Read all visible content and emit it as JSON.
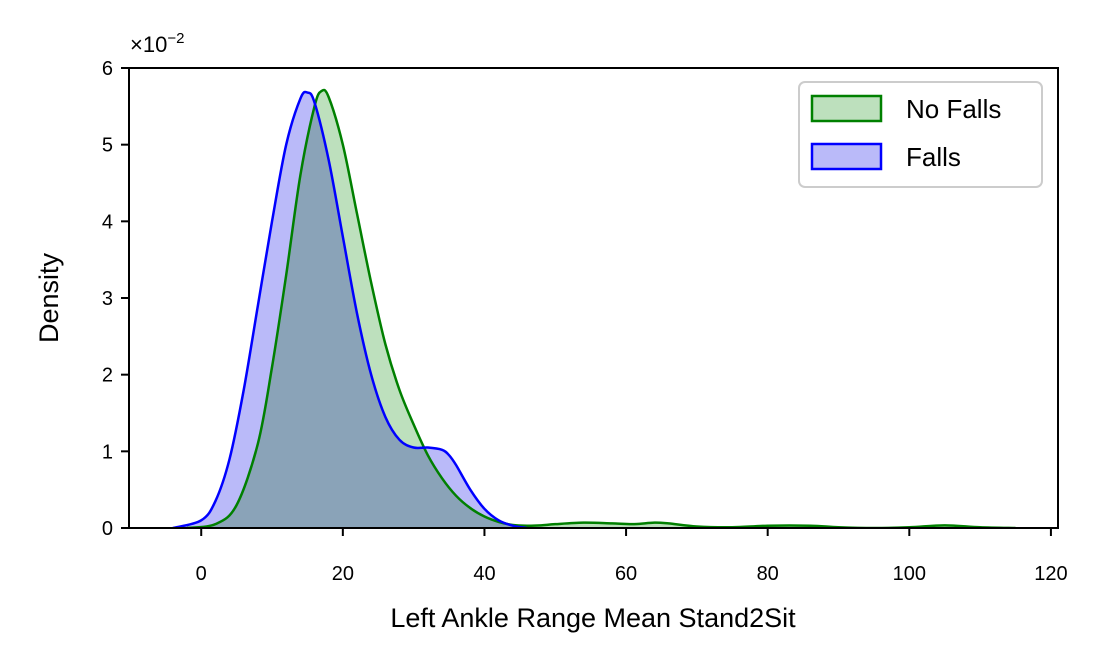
{
  "chart_data": {
    "type": "area",
    "xlabel": "Left Ankle Range Mean Stand2Sit",
    "ylabel": "Density",
    "xlim": [
      -10.2,
      121.0
    ],
    "ylim": [
      0,
      6
    ],
    "x_ticks": [
      0,
      20,
      40,
      60,
      80,
      100,
      120
    ],
    "y_ticks": [
      0,
      1,
      2,
      3,
      4,
      5,
      6
    ],
    "y_scale_prefix": "×10",
    "y_scale_exponent": "−2",
    "grid": false,
    "legend_position": "top-right",
    "series": [
      {
        "name": "No Falls",
        "line_color": "#008000",
        "fill_color": "#bde0bd",
        "x": [
          -2,
          2,
          5,
          8,
          10,
          12,
          14,
          16,
          17,
          18,
          20,
          22,
          24,
          26,
          28,
          30,
          32,
          34,
          36,
          38,
          40,
          42,
          44,
          46,
          48,
          50,
          54,
          58,
          61,
          64,
          66,
          70,
          75,
          80,
          86,
          90,
          95,
          100,
          105,
          110,
          115
        ],
        "y": [
          0.0,
          0.05,
          0.3,
          1.1,
          2.1,
          3.3,
          4.6,
          5.5,
          5.7,
          5.62,
          5.0,
          4.1,
          3.2,
          2.4,
          1.8,
          1.35,
          0.95,
          0.65,
          0.42,
          0.26,
          0.15,
          0.08,
          0.04,
          0.03,
          0.035,
          0.05,
          0.07,
          0.06,
          0.05,
          0.07,
          0.06,
          0.02,
          0.01,
          0.03,
          0.03,
          0.01,
          0.0,
          0.01,
          0.035,
          0.01,
          0.0
        ]
      },
      {
        "name": "Falls",
        "line_color": "#0000ff",
        "fill_color": "#babaf9",
        "x": [
          -4,
          0,
          2,
          4,
          6,
          8,
          10,
          12,
          14,
          15,
          16,
          18,
          20,
          22,
          24,
          26,
          28,
          30,
          32,
          34,
          35,
          36,
          38,
          40,
          42,
          44,
          46
        ],
        "y": [
          0.0,
          0.1,
          0.35,
          0.9,
          1.8,
          2.9,
          4.0,
          5.0,
          5.6,
          5.68,
          5.55,
          4.8,
          3.8,
          2.8,
          2.0,
          1.45,
          1.15,
          1.05,
          1.05,
          1.02,
          0.95,
          0.82,
          0.5,
          0.25,
          0.1,
          0.03,
          0.0
        ]
      }
    ]
  }
}
